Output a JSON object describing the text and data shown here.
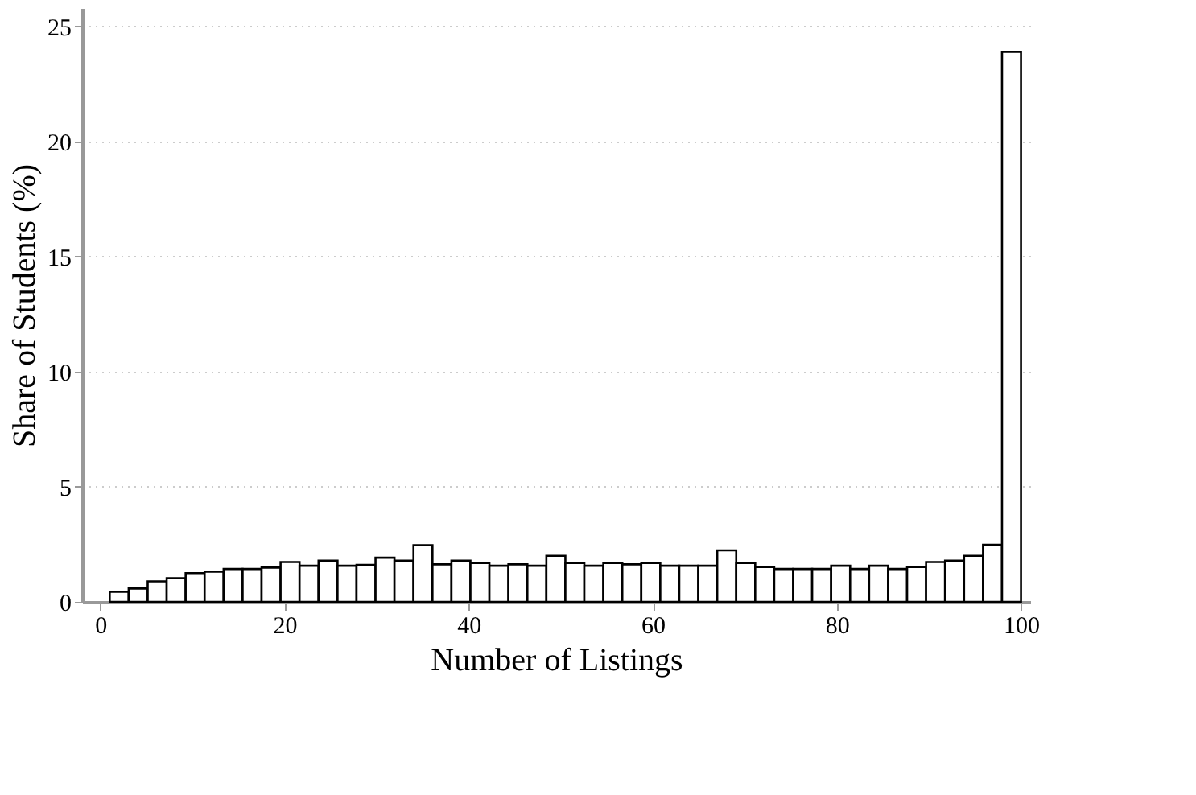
{
  "chart_data": {
    "type": "histogram",
    "xlabel": "Number of Listings",
    "ylabel": "Share of Students (%)",
    "bins": [
      1,
      3.0625,
      5.125,
      7.1875,
      9.25,
      11.3125,
      13.375,
      15.4375,
      17.5,
      19.5625,
      21.625,
      23.6875,
      25.75,
      27.8125,
      29.875,
      31.9375,
      34,
      36.0625,
      38.125,
      40.1875,
      42.25,
      44.3125,
      46.375,
      48.4375,
      50.5,
      52.5625,
      54.625,
      56.6875,
      58.75,
      60.8125,
      62.875,
      64.9375,
      67,
      69.0625,
      71.125,
      73.1875,
      75.25,
      77.3125,
      79.375,
      81.4375,
      83.5,
      85.5625,
      87.625,
      89.6875,
      91.75,
      93.8125,
      95.875,
      97.9375,
      100
    ],
    "values": [
      0.44,
      0.58,
      0.89,
      1.03,
      1.25,
      1.31,
      1.43,
      1.43,
      1.49,
      1.73,
      1.57,
      1.79,
      1.57,
      1.61,
      1.92,
      1.79,
      2.46,
      1.63,
      1.79,
      1.69,
      1.57,
      1.63,
      1.57,
      2.0,
      1.69,
      1.57,
      1.69,
      1.63,
      1.69,
      1.57,
      1.57,
      1.57,
      2.24,
      1.69,
      1.51,
      1.43,
      1.43,
      1.43,
      1.57,
      1.43,
      1.57,
      1.43,
      1.51,
      1.73,
      1.79,
      2.0,
      2.48,
      23.9
    ],
    "color": "#ffffff",
    "xlim": [
      -2,
      101
    ],
    "xticks": [
      0,
      20,
      40,
      60,
      80,
      100
    ],
    "ylim": [
      0,
      25.8
    ],
    "yticks": [
      0,
      5,
      10,
      15,
      20,
      25
    ],
    "grid": "y"
  }
}
